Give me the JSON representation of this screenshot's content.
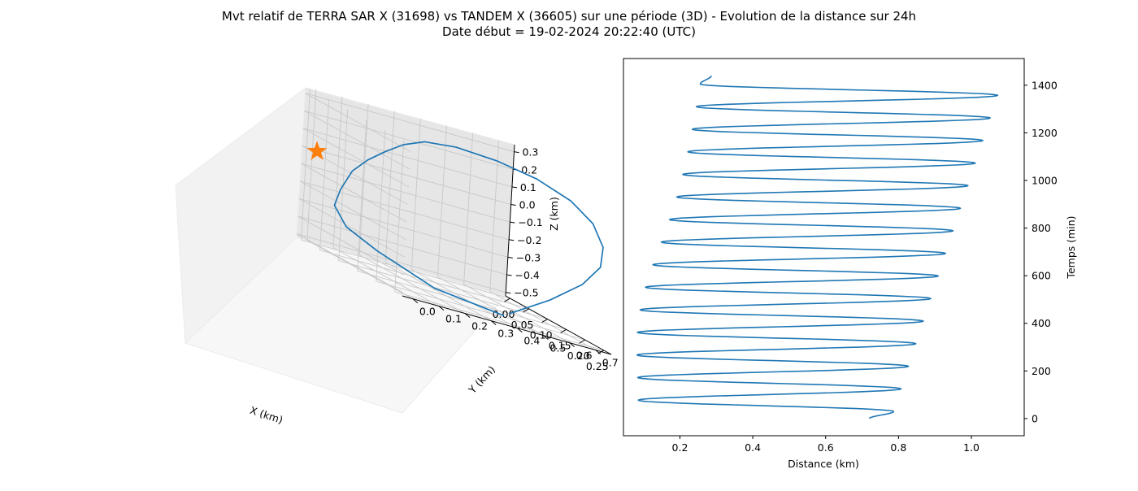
{
  "figure": {
    "title_line1": "Mvt relatif de TERRA SAR X (31698) vs TANDEM X (36605) sur une période (3D) - Evolution de la distance sur 24h",
    "title_line2": "Date début = 19-02-2024 20:22:40 (UTC)"
  },
  "colors": {
    "series": "#1f77b4",
    "marker": "#ff7f0e"
  },
  "chart_data": [
    {
      "type": "line",
      "projection": "3d",
      "xlabel": "X (km)",
      "ylabel": "Y (km)",
      "zlabel": "Z (km)",
      "x_ticks": [
        "0.00",
        "0.05",
        "0.10",
        "0.15",
        "0.20",
        "0.25"
      ],
      "y_ticks": [
        "0.0",
        "0.1",
        "0.2",
        "0.3",
        "0.4",
        "0.5",
        "0.6",
        "0.7"
      ],
      "z_ticks": [
        "0.3",
        "0.2",
        "0.1",
        "0.0",
        "−0.1",
        "−0.2",
        "−0.3",
        "−0.4",
        "−0.5"
      ],
      "xlim": [
        -0.012,
        0.27
      ],
      "ylim": [
        -0.04,
        0.76
      ],
      "zlim": [
        -0.52,
        0.34
      ],
      "series": [
        {
          "values_xyz": [
            [
              0.22,
              0.42,
              -0.5
            ],
            [
              0.16,
              0.24,
              -0.49
            ],
            [
              0.11,
              0.09,
              -0.4
            ],
            [
              0.08,
              0.01,
              -0.33
            ],
            [
              0.06,
              -0.01,
              -0.24
            ],
            [
              0.06,
              0.01,
              -0.14
            ],
            [
              0.06,
              0.05,
              -0.02
            ],
            [
              0.05,
              0.12,
              0.06
            ],
            [
              0.04,
              0.2,
              0.13
            ],
            [
              0.03,
              0.28,
              0.19
            ],
            [
              0.03,
              0.36,
              0.24
            ],
            [
              0.05,
              0.45,
              0.27
            ],
            [
              0.09,
              0.55,
              0.28
            ],
            [
              0.14,
              0.63,
              0.27
            ],
            [
              0.19,
              0.69,
              0.23
            ],
            [
              0.23,
              0.72,
              0.16
            ],
            [
              0.26,
              0.72,
              0.06
            ],
            [
              0.27,
              0.7,
              -0.05
            ],
            [
              0.26,
              0.65,
              -0.18
            ],
            [
              0.24,
              0.56,
              -0.33
            ],
            [
              0.22,
              0.44,
              -0.48
            ]
          ]
        },
        {
          "marker": "star",
          "values_xyz": [
            [
              0.0,
              0.0,
              0.0
            ]
          ]
        }
      ]
    },
    {
      "type": "line",
      "xlabel": "Distance (km)",
      "ylabel": "Temps (min)",
      "x_ticks": [
        0.2,
        0.4,
        0.6,
        0.8,
        1.0
      ],
      "y_ticks": [
        0,
        200,
        400,
        600,
        800,
        1000,
        1200,
        1400
      ],
      "xlim": [
        0.045,
        1.145
      ],
      "ylim": [
        -72,
        1512
      ],
      "y_axis_side": "right",
      "series": [
        {
          "oscillation": {
            "t_start": 0,
            "t_end": 1440,
            "start_distance": 0.72,
            "period_min": 94.8,
            "first_turn_min": 30,
            "max_distance_start": 0.78,
            "max_distance_end": 1.09,
            "min_distance_start": 0.1,
            "min_distance_end": 0.26,
            "min_distance_lowest": 0.09,
            "min_distance_lowest_at": 450
          }
        }
      ]
    }
  ]
}
